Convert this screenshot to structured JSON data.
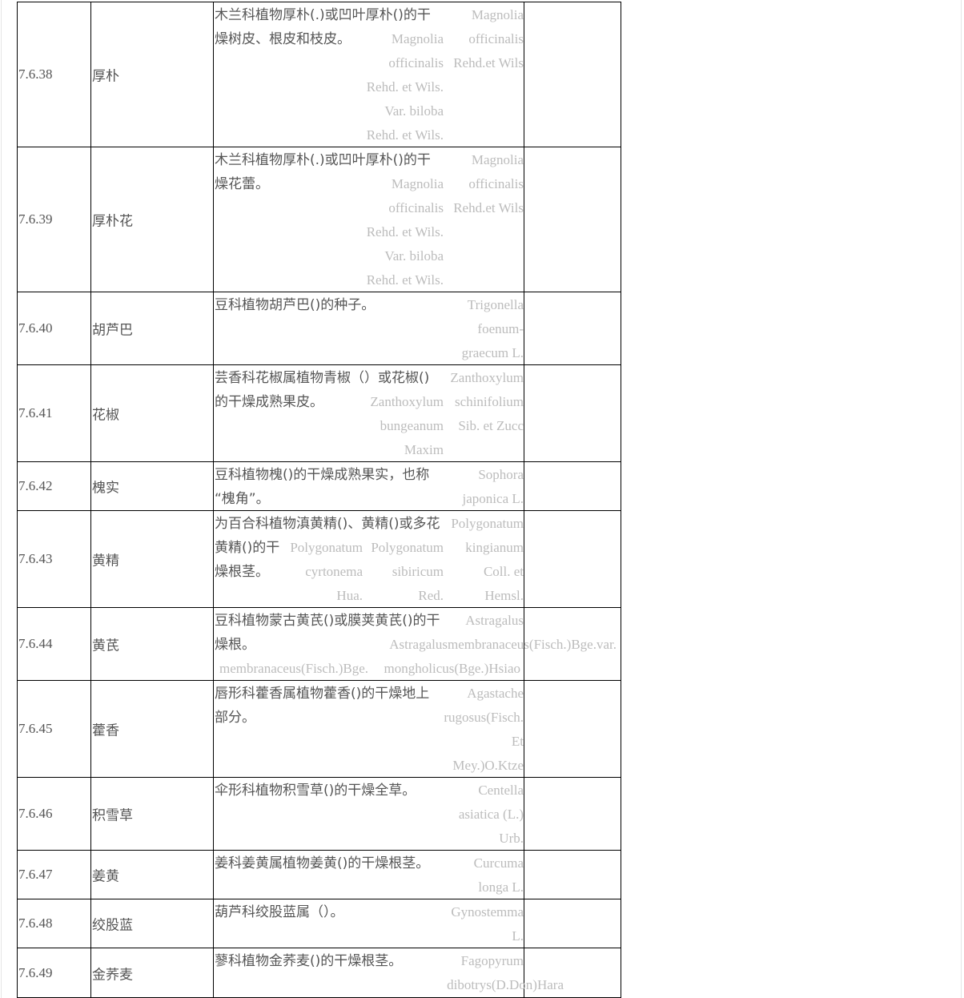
{
  "rows": [
    {
      "id": "7.6.38",
      "name": "厚朴",
      "desc": [
        "木兰科植物厚朴(.)或凹叶厚朴()的干",
        "燥树皮、根皮和枝皮。"
      ],
      "latin": [
        [
          "Magnolia",
          "officinalis",
          "Rehd.et Wils"
        ],
        [
          "Magnolia",
          "officinalis",
          "Rehd. et Wils.",
          "Var. biloba",
          "Rehd. et Wils."
        ]
      ]
    },
    {
      "id": "7.6.39",
      "name": "厚朴花",
      "desc": [
        "木兰科植物厚朴(.)或凹叶厚朴()的干",
        "燥花蕾。"
      ],
      "latin": [
        [
          "Magnolia",
          "officinalis",
          "Rehd.et Wils"
        ],
        [
          "Magnolia",
          "officinalis",
          "Rehd. et Wils.",
          "Var. biloba",
          "Rehd. et Wils."
        ]
      ]
    },
    {
      "id": "7.6.40",
      "name": "胡芦巴",
      "desc": [
        "豆科植物胡芦巴()的种子。"
      ],
      "latin": [
        [
          "Trigonella",
          "foenum-",
          "graecum L."
        ]
      ]
    },
    {
      "id": "7.6.41",
      "name": "花椒",
      "desc": [
        "芸香科花椒属植物青椒（）或花椒()",
        "的干燥成熟果皮。"
      ],
      "latin": [
        [
          "Zanthoxylum",
          "schinifolium",
          "Sib. et Zucc"
        ],
        [
          "Zanthoxylum",
          "bungeanum",
          "Maxim"
        ]
      ]
    },
    {
      "id": "7.6.42",
      "name": "槐实",
      "desc": [
        "豆科植物槐()的干燥成熟果实，也称",
        "“槐角”。"
      ],
      "latin": [
        [
          "Sophora",
          "japonica L."
        ]
      ]
    },
    {
      "id": "7.6.43",
      "name": "黄精",
      "desc": [
        "为百合科植物滇黄精()、黄精()或多花",
        "黄精()的干",
        "燥根茎。"
      ],
      "latin": [
        [
          "Polygonatum",
          "kingianum",
          "Coll. et",
          "Hemsl."
        ],
        [
          "Polygonatum",
          "sibiricum",
          "Red."
        ],
        [
          "Polygonatum",
          "cyrtonema",
          "Hua."
        ]
      ]
    },
    {
      "id": "7.6.44",
      "name": "黄芪",
      "desc": [
        "豆科植物蒙古黄芪()或膜荚黄芪()的干",
        "燥根。"
      ],
      "latin": [
        [
          "Astragalus"
        ],
        [
          "Astragalusmembranaceus(Fisch.)Bge.var."
        ],
        [
          "membranaceus(Fisch.)Bge."
        ],
        [
          "mongholicus(Bge.)Hsiao"
        ]
      ]
    },
    {
      "id": "7.6.45",
      "name": "藿香",
      "desc": [
        "唇形科藿香属植物藿香()的干燥地上",
        "部分。"
      ],
      "latin": [
        [
          "Agastache",
          "rugosus(Fisch.",
          "Et",
          "Mey.)O.Ktze"
        ]
      ]
    },
    {
      "id": "7.6.46",
      "name": "积雪草",
      "desc": [
        "伞形科植物积雪草()的干燥全草。"
      ],
      "latin": [
        [
          "Centella",
          "asiatica (L.)",
          "Urb."
        ]
      ]
    },
    {
      "id": "7.6.47",
      "name": "姜黄",
      "desc": [
        "姜科姜黄属植物姜黄()的干燥根茎。"
      ],
      "latin": [
        [
          "Curcuma",
          "longa L."
        ]
      ]
    },
    {
      "id": "7.6.48",
      "name": "绞股蓝",
      "desc": [
        "葫芦科绞股蓝属（）。"
      ],
      "latin": [
        [
          "Gynostemma",
          "L."
        ]
      ]
    },
    {
      "id": "7.6.49",
      "name": "金荞麦",
      "desc": [
        "蓼科植物金荞麦()的干燥根茎。"
      ],
      "latin": [
        [
          "Fagopyrum"
        ],
        [
          "dibotrys(D.Don)Hara"
        ]
      ]
    }
  ]
}
